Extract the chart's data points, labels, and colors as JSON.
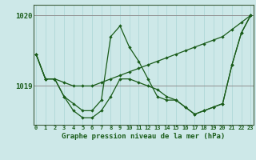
{
  "bg_color": "#cde8e8",
  "line_color": "#1a5c1a",
  "grid_color_v": "#b0d8d8",
  "grid_color_h": "#909090",
  "ylim": [
    1018.45,
    1020.15
  ],
  "yticks": [
    1019,
    1020
  ],
  "xlim": [
    -0.3,
    23.3
  ],
  "xlabel": "Graphe pression niveau de la mer (hPa)",
  "line1_y": [
    1019.45,
    1019.1,
    1019.1,
    1019.05,
    1019.0,
    1019.0,
    1019.0,
    1019.05,
    1019.1,
    1019.15,
    1019.2,
    1019.25,
    1019.3,
    1019.35,
    1019.4,
    1019.45,
    1019.5,
    1019.55,
    1019.6,
    1019.65,
    1019.7,
    1019.8,
    1019.9,
    1020.0
  ],
  "line2_y": [
    1019.45,
    1019.1,
    1019.1,
    1018.85,
    1018.75,
    1018.65,
    1018.65,
    1018.8,
    1019.7,
    1019.85,
    1019.55,
    1019.35,
    1019.1,
    1018.85,
    1018.8,
    1018.8,
    1018.7,
    1018.6,
    1018.65,
    1018.7,
    1018.75,
    1019.3,
    1019.75,
    1020.0
  ],
  "line3_y": [
    1019.45,
    1019.1,
    1019.1,
    1018.85,
    1018.65,
    1018.55,
    1018.55,
    1018.65,
    1018.85,
    1019.1,
    1019.1,
    1019.05,
    1019.0,
    1018.95,
    1018.85,
    1018.8,
    1018.7,
    1018.6,
    1018.65,
    1018.7,
    1018.75,
    1019.3,
    1019.75,
    1020.0
  ]
}
